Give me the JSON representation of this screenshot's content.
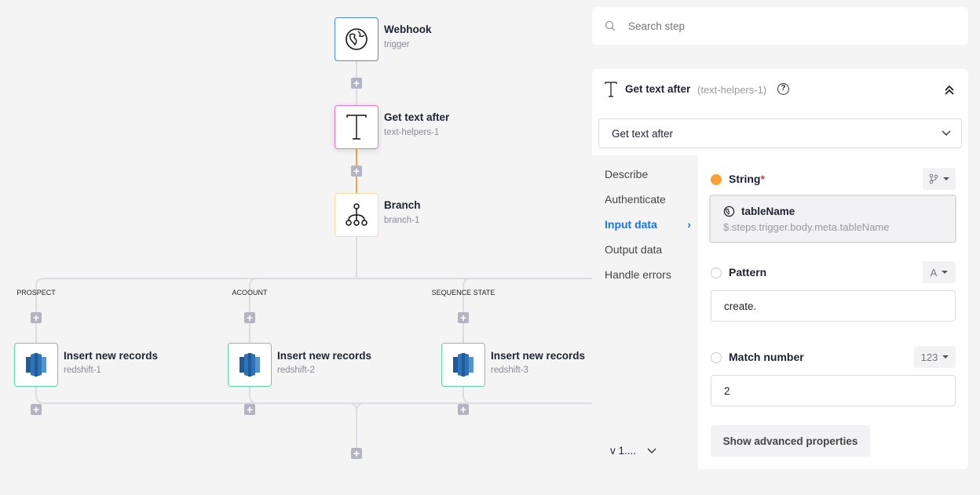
{
  "canvas": {
    "nodes": [
      {
        "title": "Webhook",
        "subtitle": "trigger",
        "icon": "globe-icon",
        "border": "#4a8ef0"
      },
      {
        "title": "Get text after",
        "subtitle": "text-helpers-1",
        "icon": "text-icon",
        "border": "#f06fd6"
      },
      {
        "title": "Branch",
        "subtitle": "branch-1",
        "icon": "branch-icon",
        "border": "#fcd9a2"
      }
    ],
    "branches": [
      {
        "label": "PROSPECT",
        "title": "Insert new records",
        "subtitle": "redshift-1"
      },
      {
        "label": "ACOOUNT",
        "title": "Insert new records",
        "subtitle": "redshift-2"
      },
      {
        "label": "SEQUENCE STATE",
        "title": "Insert new records",
        "subtitle": "redshift-3"
      }
    ],
    "plus_label": "+",
    "colors": {
      "active_line": "#f7a23b",
      "line": "#dcdce2",
      "redshift_border": "#5fd3a2"
    }
  },
  "search": {
    "placeholder": "Search step"
  },
  "panel": {
    "title": "Get text after",
    "step_id": "(text-helpers-1)",
    "method_select": "Get text after",
    "nav": [
      {
        "label": "Describe"
      },
      {
        "label": "Authenticate"
      },
      {
        "label": "Input data",
        "active": true
      },
      {
        "label": "Output data"
      },
      {
        "label": "Handle errors"
      }
    ],
    "version": "v 1....",
    "fields": {
      "string": {
        "label": "String",
        "required": "*",
        "ref_name": "tableName",
        "ref_path": "$.steps.trigger.body.meta.tableName"
      },
      "pattern": {
        "label": "Pattern",
        "type": "A",
        "value": "create."
      },
      "match_number": {
        "label": "Match number",
        "type": "123",
        "value": "2"
      }
    },
    "advanced_button": "Show advanced properties",
    "colors": {
      "accent": "#1a73e8",
      "required_dot": "#f7a23b"
    }
  }
}
